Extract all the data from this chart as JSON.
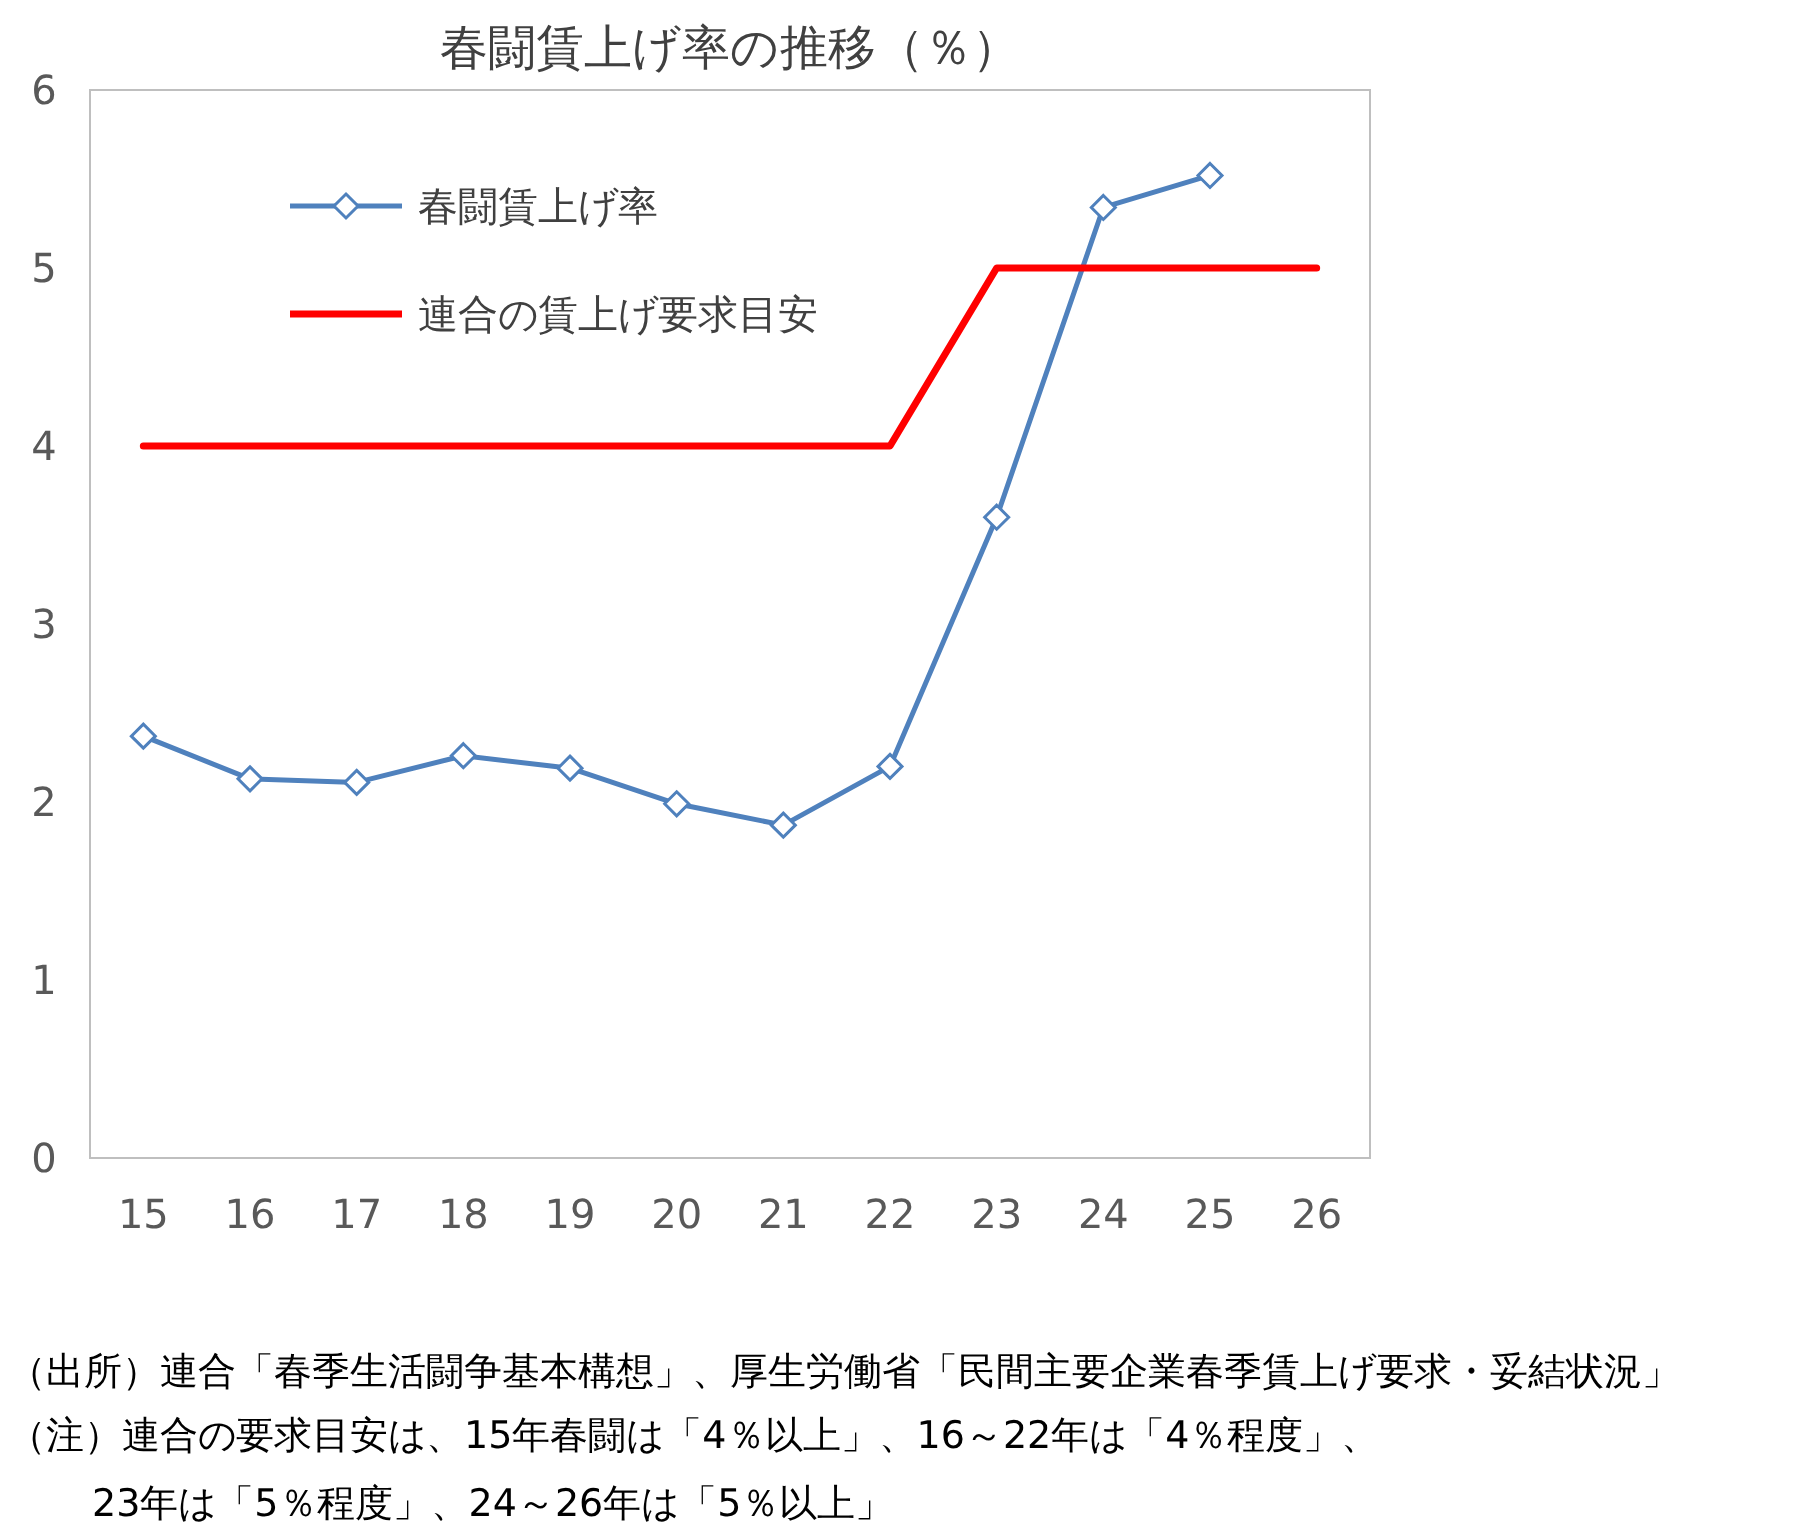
{
  "chart_data": {
    "type": "line",
    "title": "春闘賃上げ率の推移（％）",
    "categories": [
      "15",
      "16",
      "17",
      "18",
      "19",
      "20",
      "21",
      "22",
      "23",
      "24",
      "25",
      "26"
    ],
    "series": [
      {
        "name": "春闘賃上げ率",
        "color": "#4f81bd",
        "marker": "diamond",
        "values": [
          2.37,
          2.13,
          2.11,
          2.26,
          2.19,
          1.99,
          1.87,
          2.2,
          3.6,
          5.34,
          5.52,
          null
        ]
      },
      {
        "name": "連合の賃上げ要求目安",
        "color": "#ff0000",
        "marker": "none",
        "values": [
          4,
          4,
          4,
          4,
          4,
          4,
          4,
          4,
          5,
          5,
          5,
          5
        ]
      }
    ],
    "ylim": [
      0,
      6
    ],
    "yticks": [
      0,
      1,
      2,
      3,
      4,
      5,
      6
    ],
    "legend": "top left",
    "annotations": [
      "（出所）連合「春季生活闘争基本構想」、厚生労働省「民間主要企業春季賃上げ要求・妥結状況」",
      "（注）連合の要求目安は、15年春闘は「4％以上」、16～22年は「4％程度」、",
      "23年は「5％程度」、24～26年は「5％以上」"
    ]
  }
}
